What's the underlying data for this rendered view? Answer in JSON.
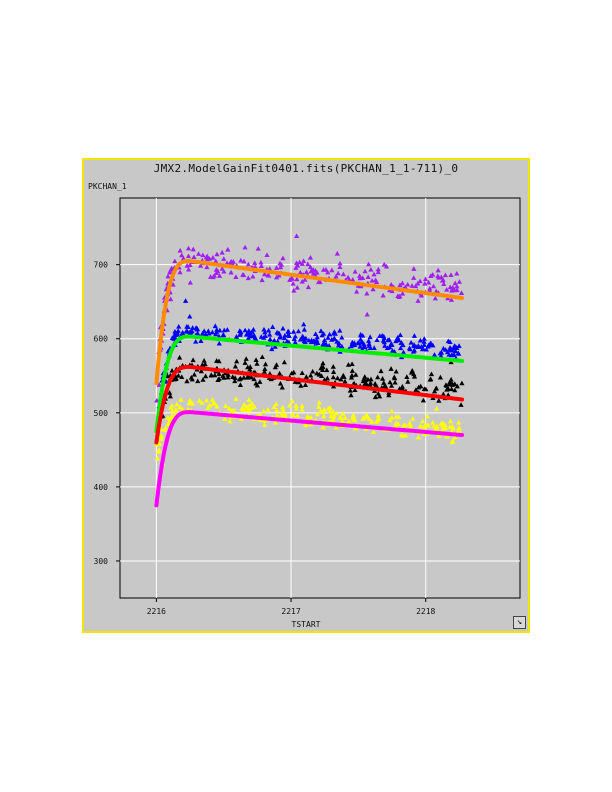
{
  "window": {
    "title": "JMX2.ModelGainFit0401.fits(PKCHAN_1_1-711)_0",
    "ylabel": "PKCHAN_1",
    "xlabel": "TSTART",
    "resize_icon": "resize-corner-icon",
    "resize_glyph": "↘"
  },
  "colors": {
    "background": "#c8c8c8",
    "border": "#f2e600",
    "grid": "#ffffff",
    "axis": "#000000"
  },
  "chart_data": {
    "type": "scatter",
    "xlim": [
      2215.73,
      2218.7
    ],
    "ylim": [
      250,
      790
    ],
    "xticks": [
      2216,
      2217,
      2218
    ],
    "xtick_labels": [
      "2216",
      "2217",
      "2218"
    ],
    "yticks": [
      300,
      400,
      500,
      600,
      700
    ],
    "ytick_labels": [
      "300",
      "400",
      "500",
      "600",
      "700"
    ],
    "grid": true,
    "scatter_series": [
      {
        "color": "#a020f0",
        "marker": "triangle",
        "start": 540,
        "peak": 705,
        "end": 668,
        "spread": 16,
        "count": 260
      },
      {
        "color": "#0000ff",
        "marker": "triangle",
        "start": 470,
        "peak": 610,
        "end": 585,
        "spread": 9,
        "count": 300
      },
      {
        "color": "#000000",
        "marker": "triangle",
        "start": 460,
        "peak": 560,
        "end": 533,
        "spread": 13,
        "count": 260
      },
      {
        "color": "#ffff00",
        "marker": "triangle",
        "start": 440,
        "peak": 507,
        "end": 478,
        "spread": 11,
        "count": 250
      }
    ],
    "fit_series": [
      {
        "color": "#ff8c00",
        "start": 540,
        "peak": 705,
        "end": 655
      },
      {
        "color": "#00ee00",
        "start": 475,
        "peak": 603,
        "end": 570
      },
      {
        "color": "#ff0000",
        "start": 460,
        "peak": 562,
        "end": 518
      },
      {
        "color": "#ff00ff",
        "start": 375,
        "peak": 501,
        "end": 470
      }
    ],
    "x_start": 2216.0,
    "x_peak": 2216.25,
    "x_end": 2218.27
  }
}
